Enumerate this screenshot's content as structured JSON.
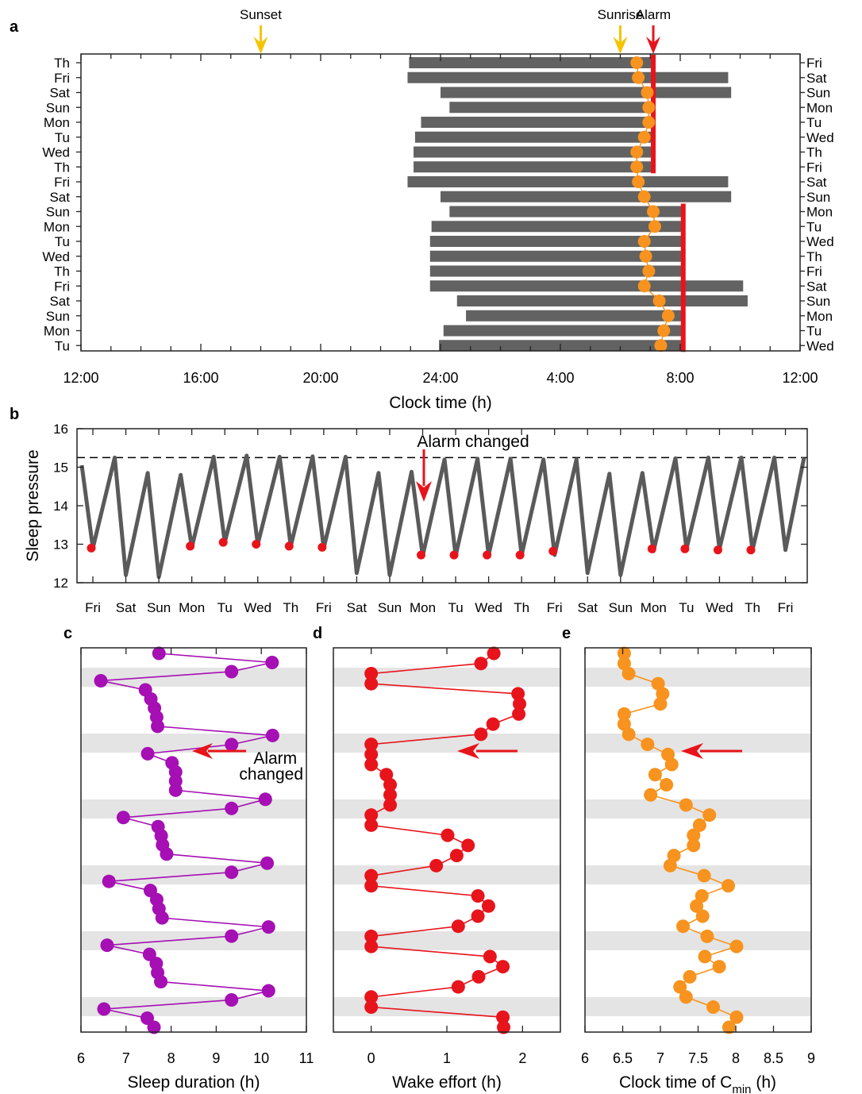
{
  "panel_letters": [
    "a",
    "b",
    "c",
    "d",
    "e"
  ],
  "chart_data": [
    {
      "panel": "a",
      "type": "bar",
      "xlabel": "Clock time (h)",
      "x_ticks": [
        {
          "label": "12:00",
          "h": 12
        },
        {
          "label": "16:00",
          "h": 16
        },
        {
          "label": "20:00",
          "h": 20
        },
        {
          "label": "24:00",
          "h": 24
        },
        {
          "label": "4:00",
          "h": 28
        },
        {
          "label": "8:00",
          "h": 32
        },
        {
          "label": "12:00",
          "h": 36
        }
      ],
      "xlim": [
        12,
        36
      ],
      "left_labels": [
        "Th",
        "Fri",
        "Sat",
        "Sun",
        "Mon",
        "Tu",
        "Wed",
        "Th",
        "Fri",
        "Sat",
        "Sun",
        "Mon",
        "Tu",
        "Wed",
        "Th",
        "Fri",
        "Sat",
        "Sun",
        "Mon",
        "Tu"
      ],
      "right_labels": [
        "Fri",
        "Sat",
        "Sun",
        "Mon",
        "Tu",
        "Wed",
        "Th",
        "Fri",
        "Sat",
        "Sun",
        "Mon",
        "Tu",
        "Wed",
        "Th",
        "Fri",
        "Sat",
        "Sun",
        "Mon",
        "Tu",
        "Wed"
      ],
      "sleep_onset_h": [
        22.95,
        22.9,
        24.0,
        24.3,
        23.35,
        23.15,
        23.1,
        23.1,
        22.9,
        24.0,
        24.3,
        23.7,
        23.65,
        23.65,
        23.65,
        23.65,
        24.55,
        24.85,
        24.1,
        23.95
      ],
      "sleep_offset_h": [
        31.1,
        33.6,
        33.7,
        31.1,
        31.1,
        31.1,
        31.1,
        31.1,
        33.6,
        33.7,
        32.1,
        32.1,
        32.1,
        32.1,
        32.1,
        34.1,
        34.25,
        32.1,
        32.1,
        32.1
      ],
      "cmin_h": [
        30.55,
        30.6,
        30.9,
        30.95,
        30.95,
        30.8,
        30.55,
        30.55,
        30.6,
        30.8,
        31.1,
        31.15,
        30.8,
        30.85,
        30.95,
        30.8,
        31.3,
        31.6,
        31.45,
        31.35
      ],
      "alarm_segments": [
        {
          "from_row": 0,
          "to_row": 8,
          "h": 31.1
        },
        {
          "from_row": 10,
          "to_row": 20,
          "h": 32.1
        }
      ],
      "markers": [
        {
          "label": "Sunset",
          "h": 18.0,
          "color": "#f5c400"
        },
        {
          "label": "Sunrise",
          "h": 30.0,
          "color": "#f5c400"
        },
        {
          "label": "Alarm",
          "h": 31.1,
          "color": "#e8141b"
        }
      ]
    },
    {
      "panel": "b",
      "type": "line",
      "ylabel": "Sleep pressure",
      "ylim": [
        12,
        16
      ],
      "y_ticks": [
        12,
        13,
        14,
        15,
        16
      ],
      "x_labels": [
        "Fri",
        "Sat",
        "Sun",
        "Mon",
        "Tu",
        "Wed",
        "Th",
        "Fri",
        "Sat",
        "Sun",
        "Mon",
        "Tu",
        "Wed",
        "Th",
        "Fri",
        "Sat",
        "Sun",
        "Mon",
        "Tu",
        "Wed",
        "Th",
        "Fri"
      ],
      "threshold": 15.25,
      "peaks": [
        15.05,
        15.25,
        14.85,
        14.8,
        15.27,
        15.3,
        15.27,
        15.28,
        15.27,
        14.85,
        14.88,
        15.2,
        15.22,
        15.22,
        15.2,
        15.2,
        14.83,
        14.85,
        15.23,
        15.25,
        15.25,
        15.25
      ],
      "troughs": [
        12.9,
        12.2,
        12.15,
        12.92,
        13.05,
        13.0,
        12.95,
        12.9,
        12.25,
        12.2,
        12.7,
        12.7,
        12.72,
        12.72,
        12.72,
        12.25,
        12.2,
        12.82,
        12.88,
        12.88,
        12.85,
        12.85
      ],
      "trough_markers": [
        12.9,
        12.95,
        13.05,
        13.0,
        12.95,
        12.92,
        12.72,
        12.72,
        12.72,
        12.72,
        12.82,
        12.88,
        12.88,
        12.85,
        12.85
      ],
      "annotation": "Alarm changed",
      "colors": {
        "line": "#555555",
        "marker": "#e8141b"
      }
    },
    {
      "panel": "c",
      "type": "scatter",
      "xlabel": "Sleep duration (h)",
      "xlim": [
        6,
        11
      ],
      "x_ticks": [
        6,
        7,
        8,
        9,
        10,
        11
      ],
      "values": [
        7.73,
        10.24,
        9.34,
        6.44,
        7.43,
        7.55,
        7.63,
        7.68,
        7.7,
        10.25,
        9.34,
        7.48,
        8.02,
        8.1,
        8.1,
        8.1,
        10.09,
        9.34,
        6.94,
        7.71,
        7.78,
        7.81,
        7.9,
        10.13,
        9.34,
        6.62,
        7.54,
        7.68,
        7.73,
        7.8,
        10.16,
        9.34,
        6.58,
        7.52,
        7.67,
        7.7,
        7.77,
        10.16,
        9.34,
        6.51,
        7.47,
        7.62
      ],
      "annotation": "Alarm changed",
      "color": "#a50fb4"
    },
    {
      "panel": "d",
      "type": "scatter",
      "xlabel": "Wake effort (h)",
      "xlim": [
        -0.5,
        2.5
      ],
      "x_ticks": [
        0,
        1,
        2
      ],
      "values": [
        1.62,
        1.45,
        0,
        0,
        1.94,
        1.96,
        1.95,
        1.61,
        1.45,
        0,
        0,
        0,
        0.2,
        0.25,
        0.25,
        0.25,
        0,
        0,
        1.01,
        1.28,
        1.13,
        0.86,
        0,
        0,
        1.41,
        1.55,
        1.41,
        1.15,
        0,
        0,
        1.57,
        1.74,
        1.42,
        1.15,
        0,
        0,
        1.74,
        1.75
      ],
      "color": "#e8141b"
    },
    {
      "panel": "e",
      "type": "scatter",
      "xlabel": "Clock time of C",
      "xlabel_sub": "min",
      "xlabel_unit": " (h)",
      "xlim": [
        6,
        9
      ],
      "x_ticks": [
        "6",
        "6.5",
        "7",
        "7.5",
        "8",
        "8.5",
        "9"
      ],
      "values": [
        6.52,
        6.52,
        6.58,
        6.97,
        7.03,
        7.0,
        6.52,
        6.52,
        6.58,
        6.83,
        7.1,
        7.15,
        6.93,
        7.08,
        6.87,
        7.34,
        7.65,
        7.52,
        7.44,
        7.44,
        7.18,
        7.13,
        7.58,
        7.9,
        7.55,
        7.48,
        7.56,
        7.3,
        7.62,
        8.01,
        7.59,
        7.78,
        7.39,
        7.26,
        7.34,
        7.7,
        8.01,
        7.91
      ],
      "color": "#f7931e"
    }
  ]
}
